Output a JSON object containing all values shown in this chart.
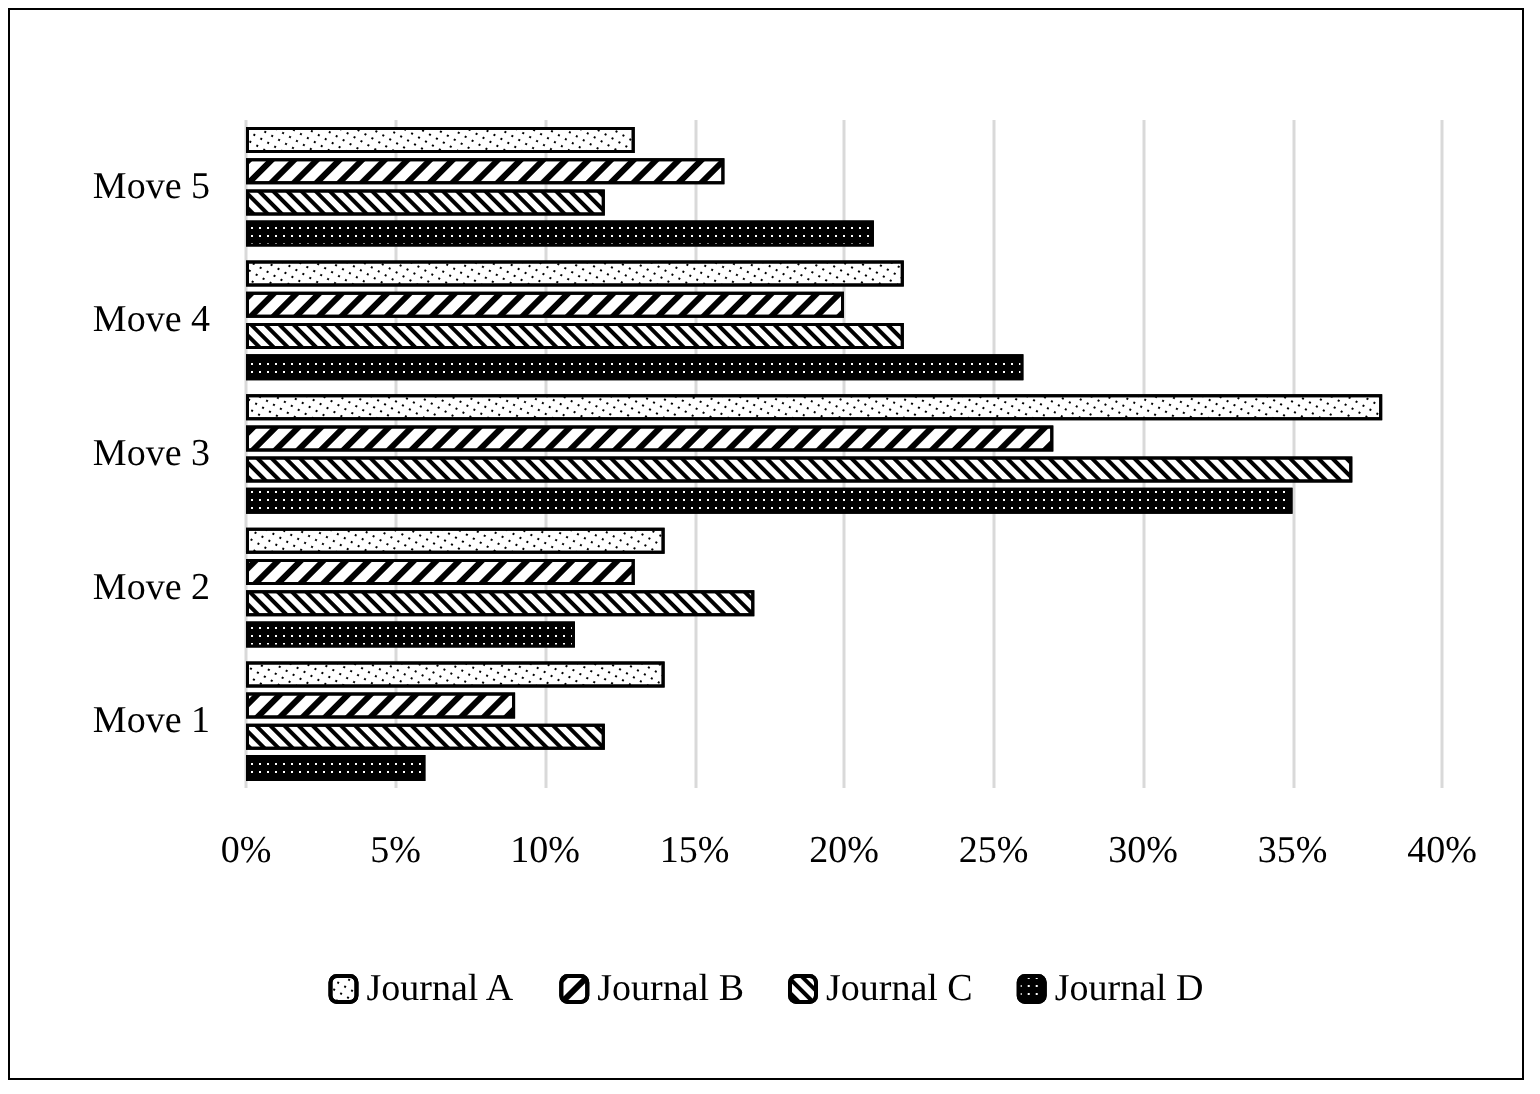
{
  "chart_data": {
    "type": "bar",
    "orientation": "horizontal",
    "categories": [
      "Move 5",
      "Move 4",
      "Move 3",
      "Move 2",
      "Move 1"
    ],
    "series": [
      {
        "name": "Journal A",
        "color": "#ffffff",
        "values": [
          13,
          22,
          38,
          14,
          14
        ]
      },
      {
        "name": "Journal B",
        "color": "#ffffff",
        "values": [
          16,
          20,
          27,
          13,
          9
        ]
      },
      {
        "name": "Journal C",
        "color": "#ffffff",
        "values": [
          12,
          22,
          37,
          17,
          12
        ]
      },
      {
        "name": "Journal D",
        "color": "#000000",
        "values": [
          21,
          26,
          35,
          11,
          6
        ]
      }
    ],
    "xlim": [
      0,
      40
    ],
    "xticks": [
      {
        "value": 0,
        "label": "0%"
      },
      {
        "value": 5,
        "label": "5%"
      },
      {
        "value": 10,
        "label": "10%"
      },
      {
        "value": 15,
        "label": "15%"
      },
      {
        "value": 20,
        "label": "20%"
      },
      {
        "value": 25,
        "label": "25%"
      },
      {
        "value": 30,
        "label": "30%"
      },
      {
        "value": 35,
        "label": "35%"
      },
      {
        "value": 40,
        "label": "40%"
      }
    ],
    "grid": "x",
    "legend": "bottom"
  }
}
